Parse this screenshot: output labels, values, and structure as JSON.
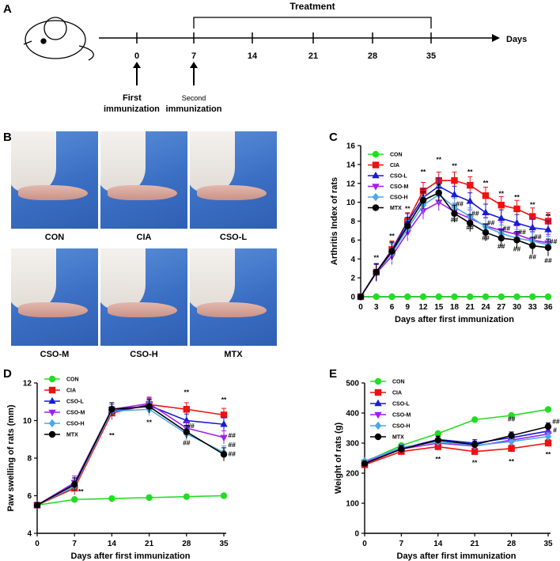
{
  "panels": {
    "a": "A",
    "b": "B",
    "c": "C",
    "d": "D",
    "e": "E"
  },
  "timeline": {
    "treatment_label": "Treatment",
    "axis_label": "Days",
    "ticks": [
      0,
      7,
      14,
      21,
      28,
      35
    ],
    "first_label_1": "First",
    "first_label_2": "immunization",
    "second_label_1": "Second",
    "second_label_2": "immunization"
  },
  "photos": [
    "CON",
    "CIA",
    "CSO-L",
    "CSO-M",
    "CSO-H",
    "MTX"
  ],
  "colors": {
    "CON": "#22dd22",
    "CIA": "#ee1111",
    "CSO-L": "#1a1ad8",
    "CSO-M": "#a020f0",
    "CSO-H": "#4aa8e8",
    "MTX": "#000000"
  },
  "chart_data": [
    {
      "id": "C",
      "type": "line",
      "xlabel": "Days after first immunization",
      "ylabel": "Arthritis Index of rats",
      "x": [
        0,
        3,
        6,
        9,
        12,
        15,
        18,
        21,
        24,
        27,
        30,
        33,
        36
      ],
      "xlim": [
        0,
        36
      ],
      "ylim": [
        0,
        16
      ],
      "yticks": [
        0,
        2,
        4,
        6,
        8,
        10,
        12,
        14,
        16
      ],
      "series": [
        {
          "name": "CON",
          "values": [
            0,
            0,
            0,
            0,
            0,
            0,
            0,
            0,
            0,
            0,
            0,
            0,
            0
          ]
        },
        {
          "name": "CIA",
          "values": [
            0,
            2.6,
            5.0,
            8.0,
            11.2,
            12.3,
            12.3,
            11.8,
            10.7,
            9.7,
            9.3,
            8.5,
            8.0
          ]
        },
        {
          "name": "CSO-L",
          "values": [
            0,
            2.6,
            4.9,
            7.9,
            10.5,
            11.7,
            10.8,
            10.1,
            8.9,
            8.3,
            7.8,
            7.3,
            7.1
          ]
        },
        {
          "name": "CSO-M",
          "values": [
            0,
            2.5,
            4.3,
            6.8,
            9.1,
            10.0,
            9.0,
            8.3,
            7.5,
            7.0,
            6.6,
            6.0,
            5.7
          ]
        },
        {
          "name": "CSO-H",
          "values": [
            0,
            2.6,
            4.6,
            7.2,
            9.7,
            10.8,
            9.5,
            8.5,
            7.4,
            6.7,
            6.2,
            5.9,
            5.5
          ]
        },
        {
          "name": "MTX",
          "values": [
            0,
            2.6,
            4.8,
            7.5,
            10.2,
            11.0,
            8.8,
            7.8,
            6.8,
            6.2,
            6.0,
            5.4,
            5.2
          ]
        }
      ],
      "annotations": [
        {
          "x": 3,
          "y": 3.9,
          "text": "**"
        },
        {
          "x": 6,
          "y": 6.2,
          "text": "**"
        },
        {
          "x": 9,
          "y": 9.1,
          "text": "**"
        },
        {
          "x": 12,
          "y": 13.0,
          "text": "**"
        },
        {
          "x": 15,
          "y": 14.3,
          "text": "**"
        },
        {
          "x": 18,
          "y": 13.6,
          "text": "**"
        },
        {
          "x": 21,
          "y": 13.0,
          "text": "**"
        },
        {
          "x": 24,
          "y": 11.8,
          "text": "**"
        },
        {
          "x": 27,
          "y": 10.7,
          "text": "**"
        },
        {
          "x": 30,
          "y": 10.3,
          "text": "**"
        },
        {
          "x": 33,
          "y": 9.5,
          "text": "**"
        },
        {
          "x": 36,
          "y": 8.3,
          "text": "**"
        },
        {
          "x": 18,
          "y": 7.9,
          "text": "##"
        },
        {
          "x": 21,
          "y": 7.1,
          "text": "##"
        },
        {
          "x": 24,
          "y": 6.0,
          "text": "##"
        },
        {
          "x": 27,
          "y": 5.1,
          "text": "##"
        },
        {
          "x": 30,
          "y": 4.8,
          "text": "##"
        },
        {
          "x": 33,
          "y": 4.0,
          "text": "##"
        },
        {
          "x": 36,
          "y": 3.6,
          "text": "##"
        },
        {
          "x": 19,
          "y": 9.6,
          "text": "##"
        },
        {
          "x": 22,
          "y": 8.6,
          "text": "##"
        },
        {
          "x": 25,
          "y": 7.6,
          "text": "##"
        },
        {
          "x": 28,
          "y": 7.0,
          "text": "##"
        },
        {
          "x": 31,
          "y": 6.6,
          "text": "##"
        },
        {
          "x": 34,
          "y": 6.1,
          "text": "##"
        },
        {
          "x": 37,
          "y": 5.6,
          "text": "##"
        }
      ]
    },
    {
      "id": "D",
      "type": "line",
      "xlabel": "Days after first immunization",
      "ylabel": "Paw swelling of rats (mm)",
      "x": [
        0,
        7,
        14,
        21,
        28,
        35
      ],
      "xlim": [
        0,
        35
      ],
      "ylim": [
        4,
        12
      ],
      "yticks": [
        4,
        6,
        8,
        10,
        12
      ],
      "series": [
        {
          "name": "CON",
          "values": [
            5.5,
            5.8,
            5.85,
            5.9,
            5.95,
            6.0
          ]
        },
        {
          "name": "CIA",
          "values": [
            5.5,
            6.4,
            10.4,
            10.85,
            10.6,
            10.3
          ]
        },
        {
          "name": "CSO-L",
          "values": [
            5.5,
            6.6,
            10.5,
            10.8,
            10.0,
            9.8
          ]
        },
        {
          "name": "CSO-M",
          "values": [
            5.5,
            6.7,
            10.6,
            10.9,
            9.6,
            9.1
          ]
        },
        {
          "name": "CSO-H",
          "values": [
            5.5,
            6.5,
            10.5,
            10.6,
            9.3,
            8.3
          ]
        },
        {
          "name": "MTX",
          "values": [
            5.5,
            6.6,
            10.6,
            10.75,
            9.4,
            8.2
          ]
        }
      ],
      "annotations": [
        {
          "x": 8.2,
          "y": 6.1,
          "text": "**"
        },
        {
          "x": 14,
          "y": 9.1,
          "text": "**"
        },
        {
          "x": 21,
          "y": 9.8,
          "text": "**"
        },
        {
          "x": 28,
          "y": 11.4,
          "text": "**"
        },
        {
          "x": 35,
          "y": 11.0,
          "text": "**"
        },
        {
          "x": 28.8,
          "y": 9.6,
          "text": "##"
        },
        {
          "x": 28,
          "y": 8.7,
          "text": "##"
        },
        {
          "x": 36.5,
          "y": 9.1,
          "text": "##"
        },
        {
          "x": 36.5,
          "y": 8.6,
          "text": "##"
        },
        {
          "x": 36.5,
          "y": 8.1,
          "text": "##"
        }
      ]
    },
    {
      "id": "E",
      "type": "line",
      "xlabel": "Days after first immunization",
      "ylabel": "Weight of rats (g)",
      "x": [
        0,
        7,
        14,
        21,
        28,
        35
      ],
      "xlim": [
        0,
        35
      ],
      "ylim": [
        0,
        500
      ],
      "yticks": [
        0,
        100,
        200,
        300,
        400,
        500
      ],
      "series": [
        {
          "name": "CON",
          "values": [
            238,
            292,
            332,
            378,
            392,
            412
          ]
        },
        {
          "name": "CIA",
          "values": [
            228,
            272,
            288,
            272,
            282,
            300
          ]
        },
        {
          "name": "CSO-L",
          "values": [
            232,
            282,
            312,
            300,
            318,
            340
          ]
        },
        {
          "name": "CSO-M",
          "values": [
            236,
            280,
            300,
            290,
            310,
            330
          ]
        },
        {
          "name": "CSO-H",
          "values": [
            240,
            285,
            305,
            292,
            305,
            322
          ]
        },
        {
          "name": "MTX",
          "values": [
            232,
            280,
            310,
            295,
            325,
            355
          ]
        }
      ],
      "annotations": [
        {
          "x": 14,
          "y": 240,
          "text": "**"
        },
        {
          "x": 21,
          "y": 228,
          "text": "**"
        },
        {
          "x": 28,
          "y": 232,
          "text": "**"
        },
        {
          "x": 35,
          "y": 255,
          "text": "**"
        },
        {
          "x": 28,
          "y": 372,
          "text": "##"
        },
        {
          "x": 36.5,
          "y": 365,
          "text": "##"
        },
        {
          "x": 36.3,
          "y": 335,
          "text": "#"
        }
      ]
    }
  ]
}
